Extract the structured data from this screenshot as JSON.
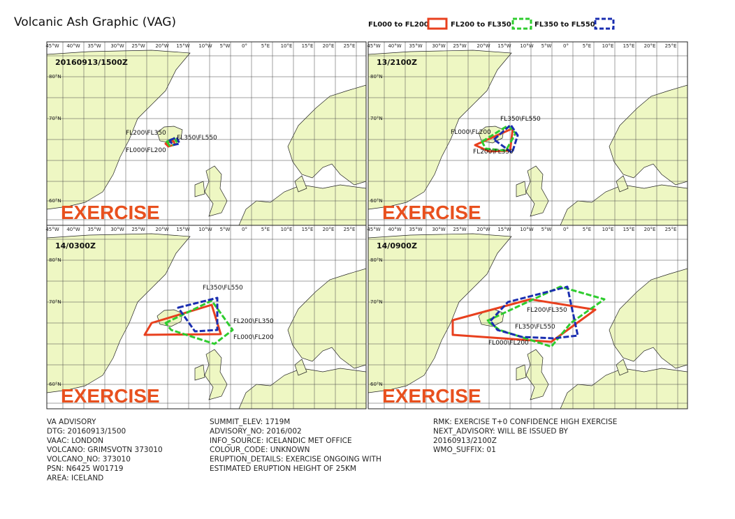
{
  "title": "Volcanic Ash Graphic (VAG)",
  "legend": [
    "FL000 to FL200",
    "FL200 to FL350",
    "FL350 to FL550"
  ],
  "longitude_labels": [
    "45°W",
    "40°W",
    "35°W",
    "30°W",
    "25°W",
    "20°W",
    "15°W",
    "10°W",
    "5°W",
    "0°",
    "5°E",
    "10°E",
    "15°E",
    "20°E",
    "25°E"
  ],
  "latitude_labels": [
    "80°N",
    "70°N",
    "60°N"
  ],
  "panels": [
    {
      "time": "20160913/1500Z",
      "watermark": "EXERCISE",
      "labels": [
        "FL200\\FL350",
        "FL350\\FL550",
        "FL000\\FL200"
      ]
    },
    {
      "time": "13/2100Z",
      "watermark": "EXERCISE",
      "labels": [
        "FL350\\FL550",
        "FL000\\FL200",
        "FL200\\FL350"
      ]
    },
    {
      "time": "14/0300Z",
      "watermark": "EXERCISE",
      "labels": [
        "FL350\\FL550",
        "FL200\\FL350",
        "FL000\\FL200"
      ]
    },
    {
      "time": "14/0900Z",
      "watermark": "EXERCISE",
      "labels": [
        "FL200\\FL350",
        "FL350\\FL550",
        "FL000\\FL200"
      ]
    }
  ],
  "advisory": {
    "columns": [
      [
        "VA ADVISORY",
        "DTG: 20160913/1500",
        "VAAC: LONDON",
        "VOLCANO: GRIMSVOTN 373010",
        "VOLCANO_NO: 373010",
        "PSN: N6425 W01719",
        "AREA: ICELAND"
      ],
      [
        "SUMMIT_ELEV: 1719M",
        "ADVISORY_NO: 2016/002",
        "INFO_SOURCE: ICELANDIC MET OFFICE",
        "COLOUR_CODE: UNKNOWN",
        "ERUPTION_DETAILS: EXERCISE ONGOING WITH",
        "ESTIMATED ERUPTION HEIGHT OF 25KM"
      ],
      [
        "RMK: EXERCISE T+0 CONFIDENCE HIGH EXERCISE",
        "NEXT_ADVISORY: WILL BE ISSUED BY",
        "20160913/2100Z",
        "WMO_SUFFIX: 01"
      ]
    ]
  }
}
